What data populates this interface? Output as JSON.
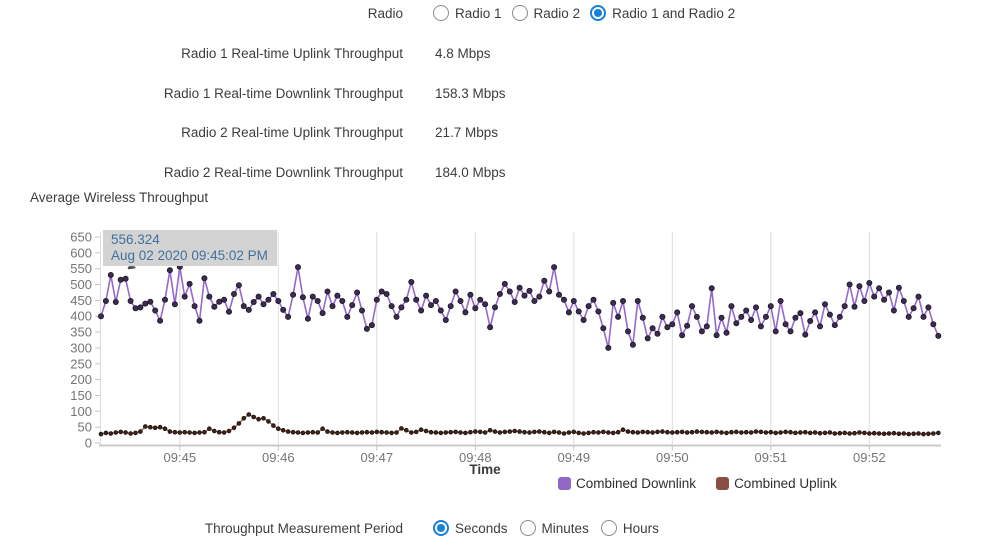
{
  "form": {
    "radio": {
      "label": "Radio",
      "options": [
        {
          "label": "Radio 1",
          "selected": false
        },
        {
          "label": "Radio 2",
          "selected": false
        },
        {
          "label": "Radio 1 and Radio 2",
          "selected": true
        }
      ]
    },
    "metrics": [
      {
        "label": "Radio 1 Real-time Uplink Throughput",
        "value": "4.8 Mbps"
      },
      {
        "label": "Radio 1 Real-time Downlink Throughput",
        "value": "158.3 Mbps"
      },
      {
        "label": "Radio 2 Real-time Uplink Throughput",
        "value": "21.7 Mbps"
      },
      {
        "label": "Radio 2 Real-time Downlink Throughput",
        "value": "184.0 Mbps"
      }
    ],
    "period": {
      "label": "Throughput Measurement Period",
      "options": [
        {
          "label": "Seconds",
          "selected": true
        },
        {
          "label": "Minutes",
          "selected": false
        },
        {
          "label": "Hours",
          "selected": false
        }
      ]
    }
  },
  "tooltip": {
    "value": "556.324",
    "timestamp": "Aug 02 2020 09:45:02 PM"
  },
  "colors": {
    "accent_blue": "#1581d9",
    "tooltip_bg": "#d3d3d3",
    "tooltip_text": "#40719e",
    "gridline": "#dcdcdc",
    "axis_line": "#c9c9c9",
    "tick_text": "#757575"
  },
  "chart_data": {
    "type": "line",
    "title": "Average Wireless Throughput",
    "xlabel": "Time",
    "ylabel": "",
    "ylim": [
      0,
      650
    ],
    "ytick_step": 50,
    "x_tick_labels": [
      "09:45",
      "09:46",
      "09:47",
      "09:48",
      "09:49",
      "09:50",
      "09:51",
      "09:52"
    ],
    "x_start_time": "09:44:14 PM",
    "sample_interval_seconds": 3,
    "grid": "vertical",
    "legend_position": "bottom",
    "series": [
      {
        "name": "Combined Downlink",
        "color": "#9469cb",
        "legend_color": "#9268c4",
        "marker_color": "#3c2c50",
        "marker_edge": "#1d1527",
        "marker_radius": 2.6,
        "line_width": 1.6,
        "values": [
          400,
          448,
          530,
          445,
          515,
          518,
          448,
          425,
          428,
          440,
          446,
          418,
          386,
          452,
          545,
          438,
          556,
          462,
          502,
          432,
          386,
          520,
          462,
          430,
          446,
          452,
          414,
          470,
          498,
          432,
          420,
          445,
          462,
          438,
          452,
          470,
          448,
          420,
          398,
          468,
          555,
          460,
          392,
          462,
          448,
          410,
          478,
          432,
          465,
          448,
          398,
          435,
          475,
          418,
          360,
          372,
          452,
          478,
          470,
          432,
          398,
          428,
          452,
          508,
          452,
          418,
          465,
          435,
          448,
          418,
          388,
          432,
          478,
          448,
          412,
          468,
          425,
          452,
          438,
          365,
          428,
          470,
          502,
          478,
          445,
          490,
          465,
          480,
          448,
          462,
          512,
          478,
          555,
          468,
          452,
          412,
          448,
          415,
          388,
          432,
          452,
          415,
          362,
          300,
          442,
          398,
          448,
          352,
          310,
          448,
          395,
          330,
          362,
          345,
          398,
          365,
          375,
          412,
          340,
          370,
          432,
          398,
          352,
          368,
          488,
          340,
          395,
          348,
          432,
          378,
          398,
          418,
          388,
          428,
          368,
          398,
          432,
          352,
          448,
          375,
          352,
          395,
          410,
          342,
          385,
          412,
          368,
          438,
          405,
          372,
          398,
          432,
          500,
          430,
          495,
          448,
          505,
          462,
          488,
          452,
          475,
          418,
          490,
          448,
          398,
          425,
          462,
          398,
          428,
          375,
          338
        ]
      },
      {
        "name": "Combined Uplink",
        "color": "#9c6a50",
        "legend_color": "#8a4f44",
        "marker_color": "#3a241d",
        "marker_edge": "#201009",
        "marker_radius": 1.9,
        "line_width": 1.4,
        "values": [
          28,
          32,
          30,
          33,
          35,
          33,
          30,
          32,
          36,
          52,
          50,
          48,
          50,
          45,
          36,
          34,
          33,
          34,
          33,
          32,
          33,
          34,
          45,
          38,
          34,
          33,
          38,
          48,
          62,
          78,
          90,
          82,
          75,
          78,
          68,
          55,
          45,
          40,
          36,
          34,
          33,
          32,
          33,
          34,
          33,
          45,
          36,
          33,
          32,
          33,
          34,
          33,
          32,
          33,
          34,
          33,
          35,
          34,
          33,
          32,
          33,
          46,
          40,
          33,
          35,
          42,
          38,
          34,
          33,
          32,
          33,
          34,
          35,
          33,
          32,
          34,
          36,
          35,
          33,
          40,
          36,
          33,
          35,
          36,
          38,
          36,
          34,
          33,
          35,
          36,
          34,
          32,
          35,
          33,
          30,
          33,
          35,
          32,
          30,
          32,
          34,
          33,
          35,
          33,
          32,
          34,
          42,
          36,
          34,
          33,
          35,
          34,
          33,
          35,
          36,
          34,
          33,
          34,
          35,
          33,
          34,
          36,
          35,
          34,
          33,
          35,
          33,
          32,
          34,
          35,
          33,
          34,
          33,
          36,
          35,
          33,
          34,
          32,
          33,
          35,
          34,
          32,
          33,
          34,
          32,
          33,
          31,
          32,
          33,
          30,
          31,
          32,
          30,
          31,
          33,
          32,
          30,
          31,
          30,
          29,
          30,
          31,
          29,
          30,
          28,
          29,
          30,
          28,
          29,
          30,
          32
        ]
      }
    ]
  }
}
